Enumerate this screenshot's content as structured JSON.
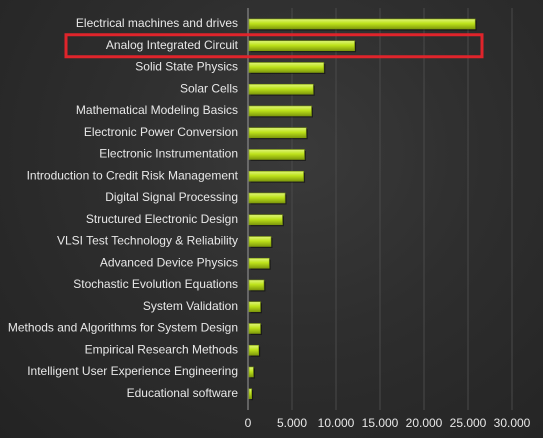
{
  "chart_data": {
    "type": "bar",
    "orientation": "horizontal",
    "categories": [
      "Electrical machines and drives",
      "Analog Integrated Circuit",
      "Solid State Physics",
      "Solar Cells",
      "Mathematical Modeling Basics",
      "Electronic Power Conversion",
      "Electronic Instrumentation",
      "Introduction to Credit Risk Management",
      "Digital Signal Processing",
      "Structured Electronic Design",
      "VLSI Test Technology & Reliability",
      "Advanced Device Physics",
      "Stochastic Evolution Equations",
      "System Validation",
      "Methods and Algorithms for System Design",
      "Empirical Research Methods",
      "Intelligent User Experience Engineering",
      "Educational software"
    ],
    "values": [
      25700,
      12000,
      8500,
      7300,
      7100,
      6500,
      6300,
      6200,
      4100,
      3800,
      2500,
      2300,
      1700,
      1300,
      1300,
      1100,
      500,
      300
    ],
    "ticks": [
      "0",
      "5.000",
      "10.000",
      "15.000",
      "20.000",
      "25.000",
      "30.000"
    ],
    "tick_values": [
      0,
      5000,
      10000,
      15000,
      20000,
      25000,
      30000
    ],
    "xlim": [
      0,
      30000
    ],
    "grid": true,
    "highlighted_category": "Analog Integrated Circuit",
    "colors": {
      "bar": "#bde21a",
      "bar_light": "#dff57a",
      "bar_dark": "#7f9a0c",
      "highlight_box": "#e0242b",
      "text": "#e8e8e8"
    }
  }
}
